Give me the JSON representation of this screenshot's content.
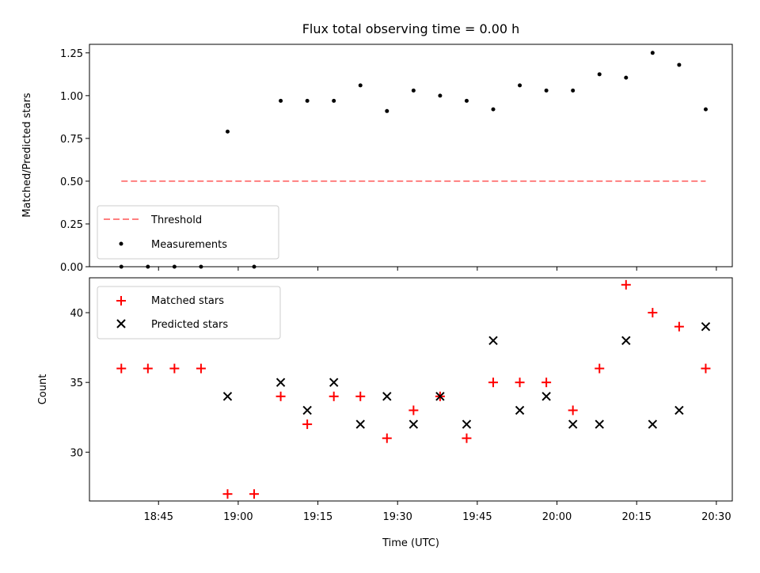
{
  "chart_data": {
    "title": "Flux total observing time = 0.00 h",
    "xlabel": "Time (UTC)",
    "x_tick_labels": [
      "18:45",
      "19:00",
      "19:15",
      "19:30",
      "19:45",
      "20:00",
      "20:15",
      "20:30"
    ],
    "x_tick_values": [
      "18:45",
      "19:00",
      "19:15",
      "19:30",
      "19:45",
      "20:00",
      "20:15",
      "20:30"
    ],
    "xlim": [
      "18:32",
      "20:33"
    ],
    "times": [
      "18:38",
      "18:43",
      "18:48",
      "18:53",
      "18:58",
      "19:03",
      "19:08",
      "19:13",
      "19:18",
      "19:23",
      "19:28",
      "19:33",
      "19:38",
      "19:43",
      "19:48",
      "19:53",
      "19:58",
      "20:03",
      "20:08",
      "20:13",
      "20:18",
      "20:23",
      "20:28"
    ],
    "panels": [
      {
        "type": "scatter",
        "ylabel": "Matched/Predicted stars",
        "ylim": [
          0,
          1.3
        ],
        "y_ticks": [
          "0.00",
          "0.25",
          "0.50",
          "0.75",
          "1.00",
          "1.25"
        ],
        "series": [
          {
            "name": "Threshold",
            "type": "line",
            "style": "dashed",
            "color": "#ff7f7f",
            "x": [
              "18:38",
              "20:28"
            ],
            "values": [
              0.5,
              0.5
            ]
          },
          {
            "name": "Measurements",
            "type": "scatter",
            "marker": "dot",
            "color": "#000000",
            "values": [
              0,
              0,
              0,
              0,
              0.79,
              0,
              0.97,
              0.97,
              0.97,
              1.06,
              0.91,
              1.03,
              1.0,
              0.97,
              0.92,
              1.06,
              1.03,
              1.03,
              1.125,
              1.105,
              1.25,
              1.18,
              0.92
            ]
          }
        ],
        "legend_position": "lower-left"
      },
      {
        "type": "scatter",
        "ylabel": "Count",
        "ylim": [
          26.5,
          42.5
        ],
        "y_ticks": [
          "30",
          "35",
          "40"
        ],
        "series": [
          {
            "name": "Matched stars",
            "marker": "plus",
            "color": "#ff0000",
            "values": [
              36,
              36,
              36,
              36,
              27,
              27,
              34,
              32,
              34,
              34,
              31,
              33,
              34,
              31,
              35,
              35,
              35,
              33,
              36,
              42,
              40,
              39,
              36
            ]
          },
          {
            "name": "Predicted stars",
            "marker": "x",
            "color": "#000000",
            "values": [
              null,
              null,
              null,
              null,
              34,
              null,
              35,
              33,
              35,
              32,
              34,
              32,
              34,
              32,
              38,
              33,
              34,
              32,
              32,
              38,
              32,
              33,
              39
            ]
          }
        ],
        "legend_position": "upper-left"
      }
    ]
  }
}
